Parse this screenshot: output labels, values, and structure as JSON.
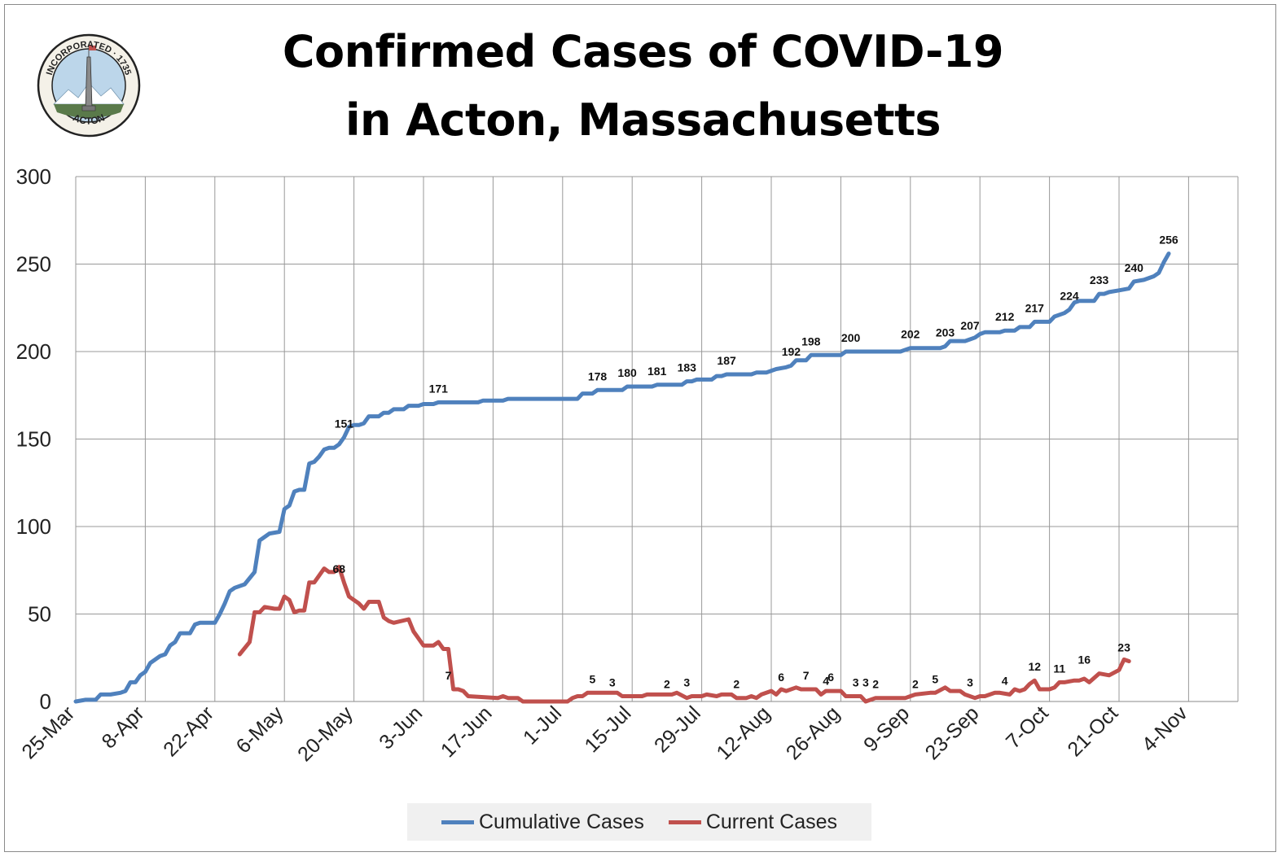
{
  "title": {
    "line1": "Confirmed Cases of COVID-19",
    "line2": "in Acton, Massachusetts"
  },
  "seal": {
    "top_text": "INCORPORATED · 1735",
    "bottom_text": "ACTON"
  },
  "chart_data": {
    "type": "line",
    "ylim": [
      0,
      300
    ],
    "yticks": [
      0,
      50,
      100,
      150,
      200,
      250,
      300
    ],
    "x_tick_labels": [
      "25-Mar",
      "8-Apr",
      "22-Apr",
      "6-May",
      "20-May",
      "3-Jun",
      "17-Jun",
      "1-Jul",
      "15-Jul",
      "29-Jul",
      "12-Aug",
      "26-Aug",
      "9-Sep",
      "23-Sep",
      "7-Oct",
      "21-Oct",
      "4-Nov"
    ],
    "grid": true,
    "legend_position": "bottom",
    "series": [
      {
        "name": "Cumulative Cases",
        "color": "#4f81bd",
        "points": [
          [
            "2020-03-25",
            0
          ],
          [
            "2020-03-27",
            1
          ],
          [
            "2020-03-29",
            1
          ],
          [
            "2020-03-30",
            4
          ],
          [
            "2020-04-01",
            4
          ],
          [
            "2020-04-03",
            5
          ],
          [
            "2020-04-04",
            6
          ],
          [
            "2020-04-05",
            11
          ],
          [
            "2020-04-06",
            11
          ],
          [
            "2020-04-07",
            15
          ],
          [
            "2020-04-08",
            17
          ],
          [
            "2020-04-09",
            22
          ],
          [
            "2020-04-11",
            26
          ],
          [
            "2020-04-12",
            27
          ],
          [
            "2020-04-13",
            32
          ],
          [
            "2020-04-14",
            34
          ],
          [
            "2020-04-15",
            39
          ],
          [
            "2020-04-17",
            39
          ],
          [
            "2020-04-18",
            44
          ],
          [
            "2020-04-19",
            45
          ],
          [
            "2020-04-22",
            45
          ],
          [
            "2020-04-23",
            50
          ],
          [
            "2020-04-24",
            56
          ],
          [
            "2020-04-25",
            63
          ],
          [
            "2020-04-26",
            65
          ],
          [
            "2020-04-28",
            67
          ],
          [
            "2020-04-30",
            74
          ],
          [
            "2020-05-01",
            92
          ],
          [
            "2020-05-03",
            96
          ],
          [
            "2020-05-05",
            97
          ],
          [
            "2020-05-06",
            110
          ],
          [
            "2020-05-07",
            112
          ],
          [
            "2020-05-08",
            120
          ],
          [
            "2020-05-09",
            121
          ],
          [
            "2020-05-10",
            121
          ],
          [
            "2020-05-11",
            136
          ],
          [
            "2020-05-12",
            137
          ],
          [
            "2020-05-13",
            140
          ],
          [
            "2020-05-14",
            144
          ],
          [
            "2020-05-15",
            145
          ],
          [
            "2020-05-16",
            145
          ],
          [
            "2020-05-17",
            147
          ],
          [
            "2020-05-18",
            151
          ],
          [
            "2020-05-19",
            157
          ],
          [
            "2020-05-20",
            158
          ],
          [
            "2020-05-21",
            158
          ],
          [
            "2020-05-22",
            159
          ],
          [
            "2020-05-23",
            163
          ],
          [
            "2020-05-25",
            163
          ],
          [
            "2020-05-26",
            165
          ],
          [
            "2020-05-27",
            165
          ],
          [
            "2020-05-28",
            167
          ],
          [
            "2020-05-30",
            167
          ],
          [
            "2020-05-31",
            169
          ],
          [
            "2020-06-02",
            169
          ],
          [
            "2020-06-03",
            170
          ],
          [
            "2020-06-05",
            170
          ],
          [
            "2020-06-06",
            171
          ],
          [
            "2020-06-14",
            171
          ],
          [
            "2020-06-15",
            172
          ],
          [
            "2020-06-19",
            172
          ],
          [
            "2020-06-20",
            173
          ],
          [
            "2020-07-04",
            173
          ],
          [
            "2020-07-05",
            176
          ],
          [
            "2020-07-07",
            176
          ],
          [
            "2020-07-08",
            178
          ],
          [
            "2020-07-13",
            178
          ],
          [
            "2020-07-14",
            180
          ],
          [
            "2020-07-19",
            180
          ],
          [
            "2020-07-20",
            181
          ],
          [
            "2020-07-25",
            181
          ],
          [
            "2020-07-26",
            183
          ],
          [
            "2020-07-27",
            183
          ],
          [
            "2020-07-28",
            184
          ],
          [
            "2020-07-31",
            184
          ],
          [
            "2020-08-01",
            186
          ],
          [
            "2020-08-02",
            186
          ],
          [
            "2020-08-03",
            187
          ],
          [
            "2020-08-08",
            187
          ],
          [
            "2020-08-09",
            188
          ],
          [
            "2020-08-11",
            188
          ],
          [
            "2020-08-12",
            189
          ],
          [
            "2020-08-13",
            190
          ],
          [
            "2020-08-15",
            191
          ],
          [
            "2020-08-16",
            192
          ],
          [
            "2020-08-17",
            195
          ],
          [
            "2020-08-19",
            195
          ],
          [
            "2020-08-20",
            198
          ],
          [
            "2020-08-26",
            198
          ],
          [
            "2020-08-27",
            200
          ],
          [
            "2020-09-07",
            200
          ],
          [
            "2020-09-08",
            201
          ],
          [
            "2020-09-09",
            202
          ],
          [
            "2020-09-15",
            202
          ],
          [
            "2020-09-16",
            203
          ],
          [
            "2020-09-17",
            206
          ],
          [
            "2020-09-20",
            206
          ],
          [
            "2020-09-21",
            207
          ],
          [
            "2020-09-22",
            208
          ],
          [
            "2020-09-23",
            210
          ],
          [
            "2020-09-24",
            211
          ],
          [
            "2020-09-27",
            211
          ],
          [
            "2020-09-28",
            212
          ],
          [
            "2020-09-30",
            212
          ],
          [
            "2020-10-01",
            214
          ],
          [
            "2020-10-03",
            214
          ],
          [
            "2020-10-04",
            217
          ],
          [
            "2020-10-07",
            217
          ],
          [
            "2020-10-08",
            220
          ],
          [
            "2020-10-10",
            222
          ],
          [
            "2020-10-11",
            224
          ],
          [
            "2020-10-12",
            228
          ],
          [
            "2020-10-13",
            229
          ],
          [
            "2020-10-16",
            229
          ],
          [
            "2020-10-17",
            233
          ],
          [
            "2020-10-18",
            233
          ],
          [
            "2020-10-19",
            234
          ],
          [
            "2020-10-21",
            235
          ],
          [
            "2020-10-23",
            236
          ],
          [
            "2020-10-24",
            240
          ],
          [
            "2020-10-26",
            241
          ],
          [
            "2020-10-28",
            243
          ],
          [
            "2020-10-29",
            245
          ],
          [
            "2020-10-30",
            251
          ],
          [
            "2020-10-31",
            256
          ]
        ],
        "labels": [
          [
            "2020-05-18",
            151
          ],
          [
            "2020-06-06",
            171
          ],
          [
            "2020-07-08",
            178
          ],
          [
            "2020-07-14",
            180
          ],
          [
            "2020-07-20",
            181
          ],
          [
            "2020-07-26",
            183
          ],
          [
            "2020-08-03",
            187
          ],
          [
            "2020-08-16",
            192
          ],
          [
            "2020-08-20",
            198
          ],
          [
            "2020-08-28",
            200
          ],
          [
            "2020-09-09",
            202
          ],
          [
            "2020-09-16",
            203
          ],
          [
            "2020-09-21",
            207
          ],
          [
            "2020-09-28",
            212
          ],
          [
            "2020-10-04",
            217
          ],
          [
            "2020-10-11",
            224
          ],
          [
            "2020-10-17",
            233
          ],
          [
            "2020-10-24",
            240
          ],
          [
            "2020-10-31",
            256
          ]
        ]
      },
      {
        "name": "Current Cases",
        "color": "#c0504d",
        "points": [
          [
            "2020-04-27",
            27
          ],
          [
            "2020-04-29",
            34
          ],
          [
            "2020-04-30",
            51
          ],
          [
            "2020-05-01",
            51
          ],
          [
            "2020-05-02",
            54
          ],
          [
            "2020-05-04",
            53
          ],
          [
            "2020-05-05",
            53
          ],
          [
            "2020-05-06",
            60
          ],
          [
            "2020-05-07",
            58
          ],
          [
            "2020-05-08",
            51
          ],
          [
            "2020-05-09",
            52
          ],
          [
            "2020-05-10",
            52
          ],
          [
            "2020-05-11",
            68
          ],
          [
            "2020-05-12",
            68
          ],
          [
            "2020-05-13",
            72
          ],
          [
            "2020-05-14",
            76
          ],
          [
            "2020-05-15",
            74
          ],
          [
            "2020-05-16",
            74
          ],
          [
            "2020-05-17",
            77
          ],
          [
            "2020-05-18",
            68
          ],
          [
            "2020-05-19",
            60
          ],
          [
            "2020-05-20",
            58
          ],
          [
            "2020-05-21",
            56
          ],
          [
            "2020-05-22",
            53
          ],
          [
            "2020-05-23",
            57
          ],
          [
            "2020-05-25",
            57
          ],
          [
            "2020-05-26",
            48
          ],
          [
            "2020-05-27",
            46
          ],
          [
            "2020-05-28",
            45
          ],
          [
            "2020-05-31",
            47
          ],
          [
            "2020-06-01",
            40
          ],
          [
            "2020-06-02",
            36
          ],
          [
            "2020-06-03",
            32
          ],
          [
            "2020-06-05",
            32
          ],
          [
            "2020-06-06",
            34
          ],
          [
            "2020-06-07",
            30
          ],
          [
            "2020-06-08",
            30
          ],
          [
            "2020-06-09",
            7
          ],
          [
            "2020-06-10",
            7
          ],
          [
            "2020-06-11",
            6
          ],
          [
            "2020-06-12",
            3
          ],
          [
            "2020-06-18",
            2
          ],
          [
            "2020-06-19",
            3
          ],
          [
            "2020-06-20",
            2
          ],
          [
            "2020-06-22",
            2
          ],
          [
            "2020-06-23",
            0
          ],
          [
            "2020-07-02",
            0
          ],
          [
            "2020-07-03",
            2
          ],
          [
            "2020-07-04",
            3
          ],
          [
            "2020-07-05",
            3
          ],
          [
            "2020-07-06",
            5
          ],
          [
            "2020-07-12",
            5
          ],
          [
            "2020-07-13",
            3
          ],
          [
            "2020-07-17",
            3
          ],
          [
            "2020-07-18",
            4
          ],
          [
            "2020-07-23",
            4
          ],
          [
            "2020-07-24",
            5
          ],
          [
            "2020-07-26",
            2
          ],
          [
            "2020-07-27",
            3
          ],
          [
            "2020-07-29",
            3
          ],
          [
            "2020-07-30",
            4
          ],
          [
            "2020-08-01",
            3
          ],
          [
            "2020-08-02",
            4
          ],
          [
            "2020-08-04",
            4
          ],
          [
            "2020-08-05",
            2
          ],
          [
            "2020-08-07",
            2
          ],
          [
            "2020-08-08",
            3
          ],
          [
            "2020-08-09",
            2
          ],
          [
            "2020-08-10",
            4
          ],
          [
            "2020-08-11",
            5
          ],
          [
            "2020-08-12",
            6
          ],
          [
            "2020-08-13",
            4
          ],
          [
            "2020-08-14",
            7
          ],
          [
            "2020-08-15",
            6
          ],
          [
            "2020-08-17",
            8
          ],
          [
            "2020-08-18",
            7
          ],
          [
            "2020-08-21",
            7
          ],
          [
            "2020-08-22",
            4
          ],
          [
            "2020-08-23",
            6
          ],
          [
            "2020-08-26",
            6
          ],
          [
            "2020-08-27",
            3
          ],
          [
            "2020-08-30",
            3
          ],
          [
            "2020-08-31",
            0
          ],
          [
            "2020-09-01",
            1
          ],
          [
            "2020-09-02",
            2
          ],
          [
            "2020-09-08",
            2
          ],
          [
            "2020-09-09",
            3
          ],
          [
            "2020-09-10",
            4
          ],
          [
            "2020-09-13",
            5
          ],
          [
            "2020-09-14",
            5
          ],
          [
            "2020-09-16",
            8
          ],
          [
            "2020-09-17",
            6
          ],
          [
            "2020-09-19",
            6
          ],
          [
            "2020-09-20",
            4
          ],
          [
            "2020-09-22",
            2
          ],
          [
            "2020-09-23",
            3
          ],
          [
            "2020-09-24",
            3
          ],
          [
            "2020-09-26",
            5
          ],
          [
            "2020-09-27",
            5
          ],
          [
            "2020-09-29",
            4
          ],
          [
            "2020-09-30",
            7
          ],
          [
            "2020-10-01",
            6
          ],
          [
            "2020-10-02",
            7
          ],
          [
            "2020-10-03",
            10
          ],
          [
            "2020-10-04",
            12
          ],
          [
            "2020-10-05",
            7
          ],
          [
            "2020-10-07",
            7
          ],
          [
            "2020-10-08",
            8
          ],
          [
            "2020-10-09",
            11
          ],
          [
            "2020-10-10",
            11
          ],
          [
            "2020-10-12",
            12
          ],
          [
            "2020-10-13",
            12
          ],
          [
            "2020-10-14",
            13
          ],
          [
            "2020-10-15",
            11
          ],
          [
            "2020-10-17",
            16
          ],
          [
            "2020-10-19",
            15
          ],
          [
            "2020-10-21",
            18
          ],
          [
            "2020-10-22",
            24
          ],
          [
            "2020-10-23",
            23
          ]
        ],
        "labels": [
          [
            "2020-05-17",
            68
          ],
          [
            "2020-06-08",
            7
          ],
          [
            "2020-07-07",
            5
          ],
          [
            "2020-07-11",
            3
          ],
          [
            "2020-07-22",
            2
          ],
          [
            "2020-07-26",
            3
          ],
          [
            "2020-08-05",
            2
          ],
          [
            "2020-08-14",
            6
          ],
          [
            "2020-08-19",
            7
          ],
          [
            "2020-08-23",
            4
          ],
          [
            "2020-08-24",
            6
          ],
          [
            "2020-08-29",
            3
          ],
          [
            "2020-08-31",
            3
          ],
          [
            "2020-09-02",
            2
          ],
          [
            "2020-09-10",
            2
          ],
          [
            "2020-09-14",
            5
          ],
          [
            "2020-09-21",
            3
          ],
          [
            "2020-09-28",
            4
          ],
          [
            "2020-10-04",
            12
          ],
          [
            "2020-10-09",
            11
          ],
          [
            "2020-10-14",
            16
          ],
          [
            "2020-10-22",
            23
          ]
        ]
      }
    ]
  }
}
